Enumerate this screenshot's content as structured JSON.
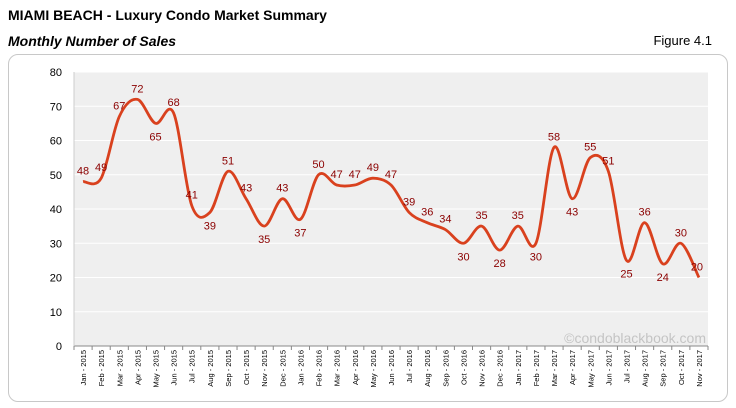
{
  "header": {
    "title": "MIAMI BEACH - Luxury Condo Market Summary",
    "subtitle": "Monthly Number of Sales",
    "figure_label": "Figure 4.1"
  },
  "watermark": "©condoblackbook.com",
  "colors": {
    "line": "#d9411e",
    "data_label": "#8b0000",
    "plot_bg": "#efefef",
    "grid": "#ffffff"
  },
  "chart_data": {
    "type": "line",
    "title": "",
    "xlabel": "",
    "ylabel": "",
    "ylim": [
      0,
      80
    ],
    "yticks": [
      0,
      10,
      20,
      30,
      40,
      50,
      60,
      70,
      80
    ],
    "grid": true,
    "legend": "none",
    "categories": [
      "Jan - 2015",
      "Feb - 2015",
      "Mar - 2015",
      "Apr - 2015",
      "May - 2015",
      "Jun - 2015",
      "Jul - 2015",
      "Aug - 2015",
      "Sep - 2015",
      "Oct - 2015",
      "Nov - 2015",
      "Dec - 2015",
      "Jan - 2016",
      "Feb - 2016",
      "Mar - 2016",
      "Apr - 2016",
      "May - 2016",
      "Jun - 2016",
      "Jul - 2016",
      "Aug - 2016",
      "Sep - 2016",
      "Oct - 2016",
      "Nov - 2016",
      "Dec - 2016",
      "Jan - 2017",
      "Feb - 2017",
      "Mar - 2017",
      "Apr - 2017",
      "May - 2017",
      "Jun - 2017",
      "Jul - 2017",
      "Aug - 2017",
      "Sep - 2017",
      "Oct - 2017",
      "Nov - 2017"
    ],
    "values": [
      48,
      49,
      67,
      72,
      65,
      68,
      41,
      39,
      51,
      43,
      35,
      43,
      37,
      50,
      47,
      47,
      49,
      47,
      39,
      36,
      34,
      30,
      35,
      28,
      35,
      30,
      58,
      43,
      55,
      51,
      25,
      36,
      24,
      30,
      20
    ]
  }
}
